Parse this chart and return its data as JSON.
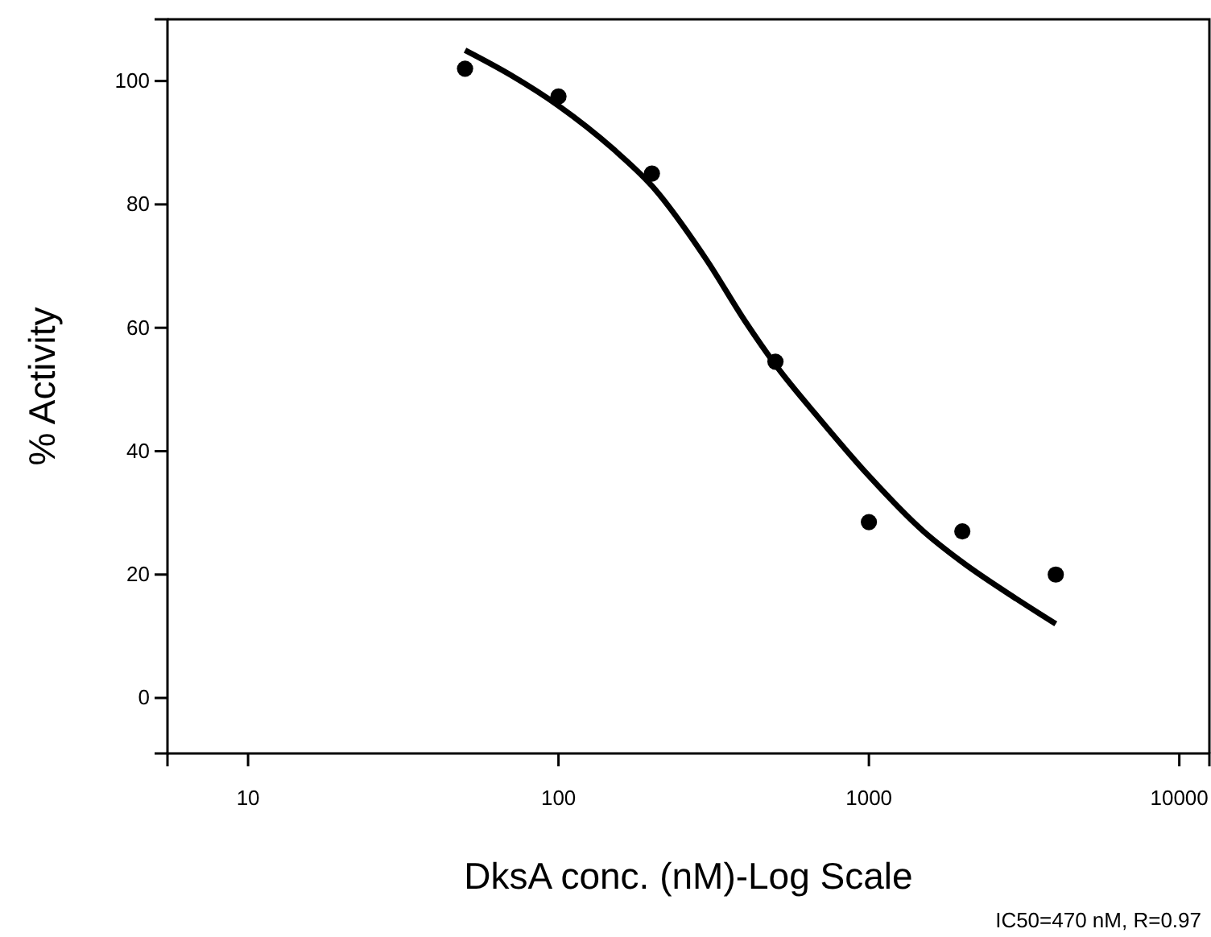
{
  "chart_data": {
    "type": "scatter",
    "xlabel": "DksA conc. (nM)-Log Scale",
    "ylabel": "% Activity",
    "log": "x",
    "xlim": [
      5.5,
      12500
    ],
    "xticks": [
      10,
      100,
      1000,
      10000
    ],
    "ylim": [
      -9,
      110
    ],
    "yticks": [
      0,
      20,
      40,
      60,
      80,
      100
    ],
    "grid": false,
    "series": [
      {
        "color": "#000000",
        "marker": "circle",
        "x": [
          50,
          100,
          200,
          500,
          1000,
          2000,
          4000
        ],
        "values": [
          102,
          97.5,
          85,
          54.5,
          28.5,
          27,
          20
        ]
      },
      {
        "type": "line",
        "color": "#000000",
        "x": [
          50,
          70,
          100,
          150,
          200,
          300,
          400,
          500,
          700,
          1000,
          1500,
          2000,
          3000,
          4000
        ],
        "values": [
          105,
          101,
          96,
          89,
          83,
          71,
          61,
          54,
          45,
          36,
          27,
          22,
          16,
          12
        ]
      }
    ],
    "annotations": [
      "IC50=470 nM, R=0.97"
    ]
  }
}
